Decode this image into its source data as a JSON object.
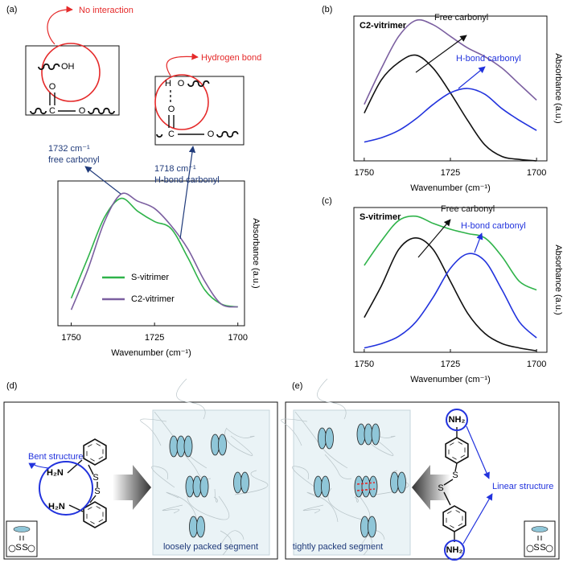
{
  "chart_data": [
    {
      "type": "line",
      "label": "(a)",
      "xlabel": "Wavenumber (cm⁻¹)",
      "ylabel": "Absorbance (a.u.)",
      "x": [
        1750,
        1745,
        1740,
        1735,
        1730,
        1725,
        1720,
        1715,
        1710,
        1705,
        1700
      ],
      "xlim": [
        1754,
        1698
      ],
      "xticks": [
        1750,
        1725,
        1700
      ],
      "ylim": [
        0,
        1
      ],
      "legend": "lower left",
      "series": [
        {
          "name": "S-vitrimer",
          "color": "#2fb34a",
          "values": [
            0.19,
            0.47,
            0.75,
            0.88,
            0.79,
            0.72,
            0.67,
            0.47,
            0.25,
            0.15,
            0.13
          ]
        },
        {
          "name": "C2-vitrimer",
          "color": "#7b5fa0",
          "values": [
            0.11,
            0.39,
            0.72,
            0.91,
            0.86,
            0.81,
            0.69,
            0.53,
            0.31,
            0.15,
            0.13
          ]
        }
      ],
      "annotations": [
        {
          "text": "No interaction",
          "color": "#e52a2a"
        },
        {
          "text": "Hydrogen bond",
          "color": "#e52a2a"
        },
        {
          "text": "1732 cm⁻¹",
          "color": "#1f3a7a"
        },
        {
          "text": "free carbonyl",
          "color": "#1f3a7a"
        },
        {
          "text": "1718 cm⁻¹",
          "color": "#1f3a7a"
        },
        {
          "text": "H-bond carbonyl",
          "color": "#1f3a7a"
        }
      ]
    },
    {
      "type": "line",
      "label": "(b)",
      "title": "C2-vitrimer",
      "xlabel": "Wavenumber (cm⁻¹)",
      "ylabel": "Absorbance (a.u.)",
      "x": [
        1750,
        1745,
        1740,
        1735,
        1730,
        1725,
        1720,
        1715,
        1710,
        1705,
        1700
      ],
      "xlim": [
        1753,
        1697
      ],
      "xticks": [
        1750,
        1725,
        1700
      ],
      "ylim": [
        0,
        1
      ],
      "series": [
        {
          "color": "#7b5fa0",
          "values": [
            0.39,
            0.64,
            0.86,
            0.97,
            0.94,
            0.86,
            0.78,
            0.72,
            0.64,
            0.53,
            0.42
          ]
        },
        {
          "color": "#111111",
          "values": [
            0.33,
            0.56,
            0.68,
            0.73,
            0.64,
            0.47,
            0.28,
            0.11,
            0.03,
            0.01,
            0
          ]
        },
        {
          "color": "#2233dd",
          "values": [
            0.13,
            0.16,
            0.21,
            0.29,
            0.39,
            0.47,
            0.5,
            0.46,
            0.36,
            0.28,
            0.21
          ]
        }
      ],
      "annotations": [
        {
          "text": "Free carbonyl",
          "color": "#111111"
        },
        {
          "text": "H-bond carbonyl",
          "color": "#2233dd"
        }
      ]
    },
    {
      "type": "line",
      "label": "(c)",
      "title": "S-vitrimer",
      "xlabel": "Wavenumber (cm⁻¹)",
      "ylabel": "Absorbance (a.u.)",
      "x": [
        1750,
        1745,
        1740,
        1735,
        1730,
        1725,
        1720,
        1715,
        1710,
        1705,
        1700
      ],
      "xlim": [
        1753,
        1697
      ],
      "xticks": [
        1750,
        1725,
        1700
      ],
      "ylim": [
        0,
        1
      ],
      "series": [
        {
          "color": "#2fb34a",
          "values": [
            0.6,
            0.77,
            0.91,
            0.94,
            0.89,
            0.85,
            0.82,
            0.79,
            0.66,
            0.49,
            0.43
          ]
        },
        {
          "color": "#111111",
          "values": [
            0.24,
            0.46,
            0.71,
            0.79,
            0.71,
            0.49,
            0.27,
            0.13,
            0.06,
            0.03,
            0.01
          ]
        },
        {
          "color": "#2233dd",
          "values": [
            0.03,
            0.06,
            0.11,
            0.21,
            0.38,
            0.58,
            0.68,
            0.63,
            0.43,
            0.21,
            0.1
          ]
        }
      ],
      "annotations": [
        {
          "text": "Free carbonyl",
          "color": "#111111"
        },
        {
          "text": "H-bond carbonyl",
          "color": "#2233dd"
        }
      ]
    }
  ],
  "scheme_a": {
    "free": {
      "hydroxyl": "OH",
      "carbonyl_o": "O",
      "carbon": "C",
      "ester_o": "O"
    },
    "hbond": {
      "hydroxyl_h": "H",
      "hydroxyl_o": "O",
      "carbonyl_o": "O",
      "carbon": "C",
      "ester_o": "O"
    }
  },
  "panel_d": {
    "label": "(d)",
    "callout": "Bent structure",
    "amine_top": "H₂N",
    "amine_bottom": "H₂N",
    "sulfur_1": "S",
    "sulfur_2": "S",
    "caption": "loosely packed segment",
    "inset_s1": "S",
    "inset_s2": "S"
  },
  "panel_e": {
    "label": "(e)",
    "callout": "Linear structure",
    "amine_top": "NH₂",
    "amine_bottom": "NH₂",
    "sulfur_1": "S",
    "sulfur_2": "S",
    "caption": "tightly packed segment",
    "inset_s1": "S",
    "inset_s2": "S"
  }
}
